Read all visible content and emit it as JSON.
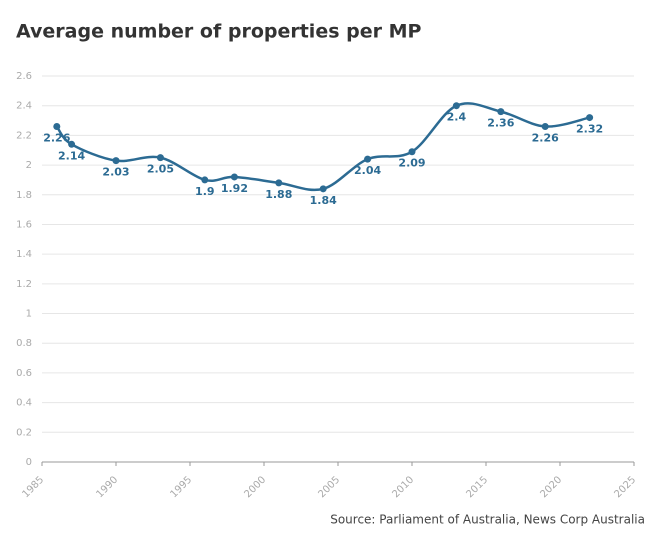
{
  "chart_data": {
    "type": "line",
    "title": "Average number of properties per MP",
    "source": "Source: Parliament of Australia, News Corp Australia",
    "x": [
      1986,
      1987,
      1990,
      1993,
      1996,
      1998,
      2001,
      2004,
      2007,
      2010,
      2013,
      2016,
      2019,
      2022
    ],
    "series": [
      {
        "color": "#2c6b93",
        "values": [
          2.26,
          2.14,
          2.03,
          2.05,
          1.9,
          1.92,
          1.88,
          1.84,
          2.04,
          2.09,
          2.4,
          2.36,
          2.26,
          2.32
        ]
      }
    ],
    "xlim": [
      1985,
      2025
    ],
    "xticks": [
      1985,
      1990,
      1995,
      2000,
      2005,
      2010,
      2015,
      2020,
      2025
    ],
    "ylim": [
      0,
      2.6
    ],
    "yticks": [
      0,
      0.2,
      0.4,
      0.6,
      0.8,
      1,
      1.2,
      1.4,
      1.6,
      1.8,
      2,
      2.2,
      2.4,
      2.6
    ],
    "grid": true
  }
}
